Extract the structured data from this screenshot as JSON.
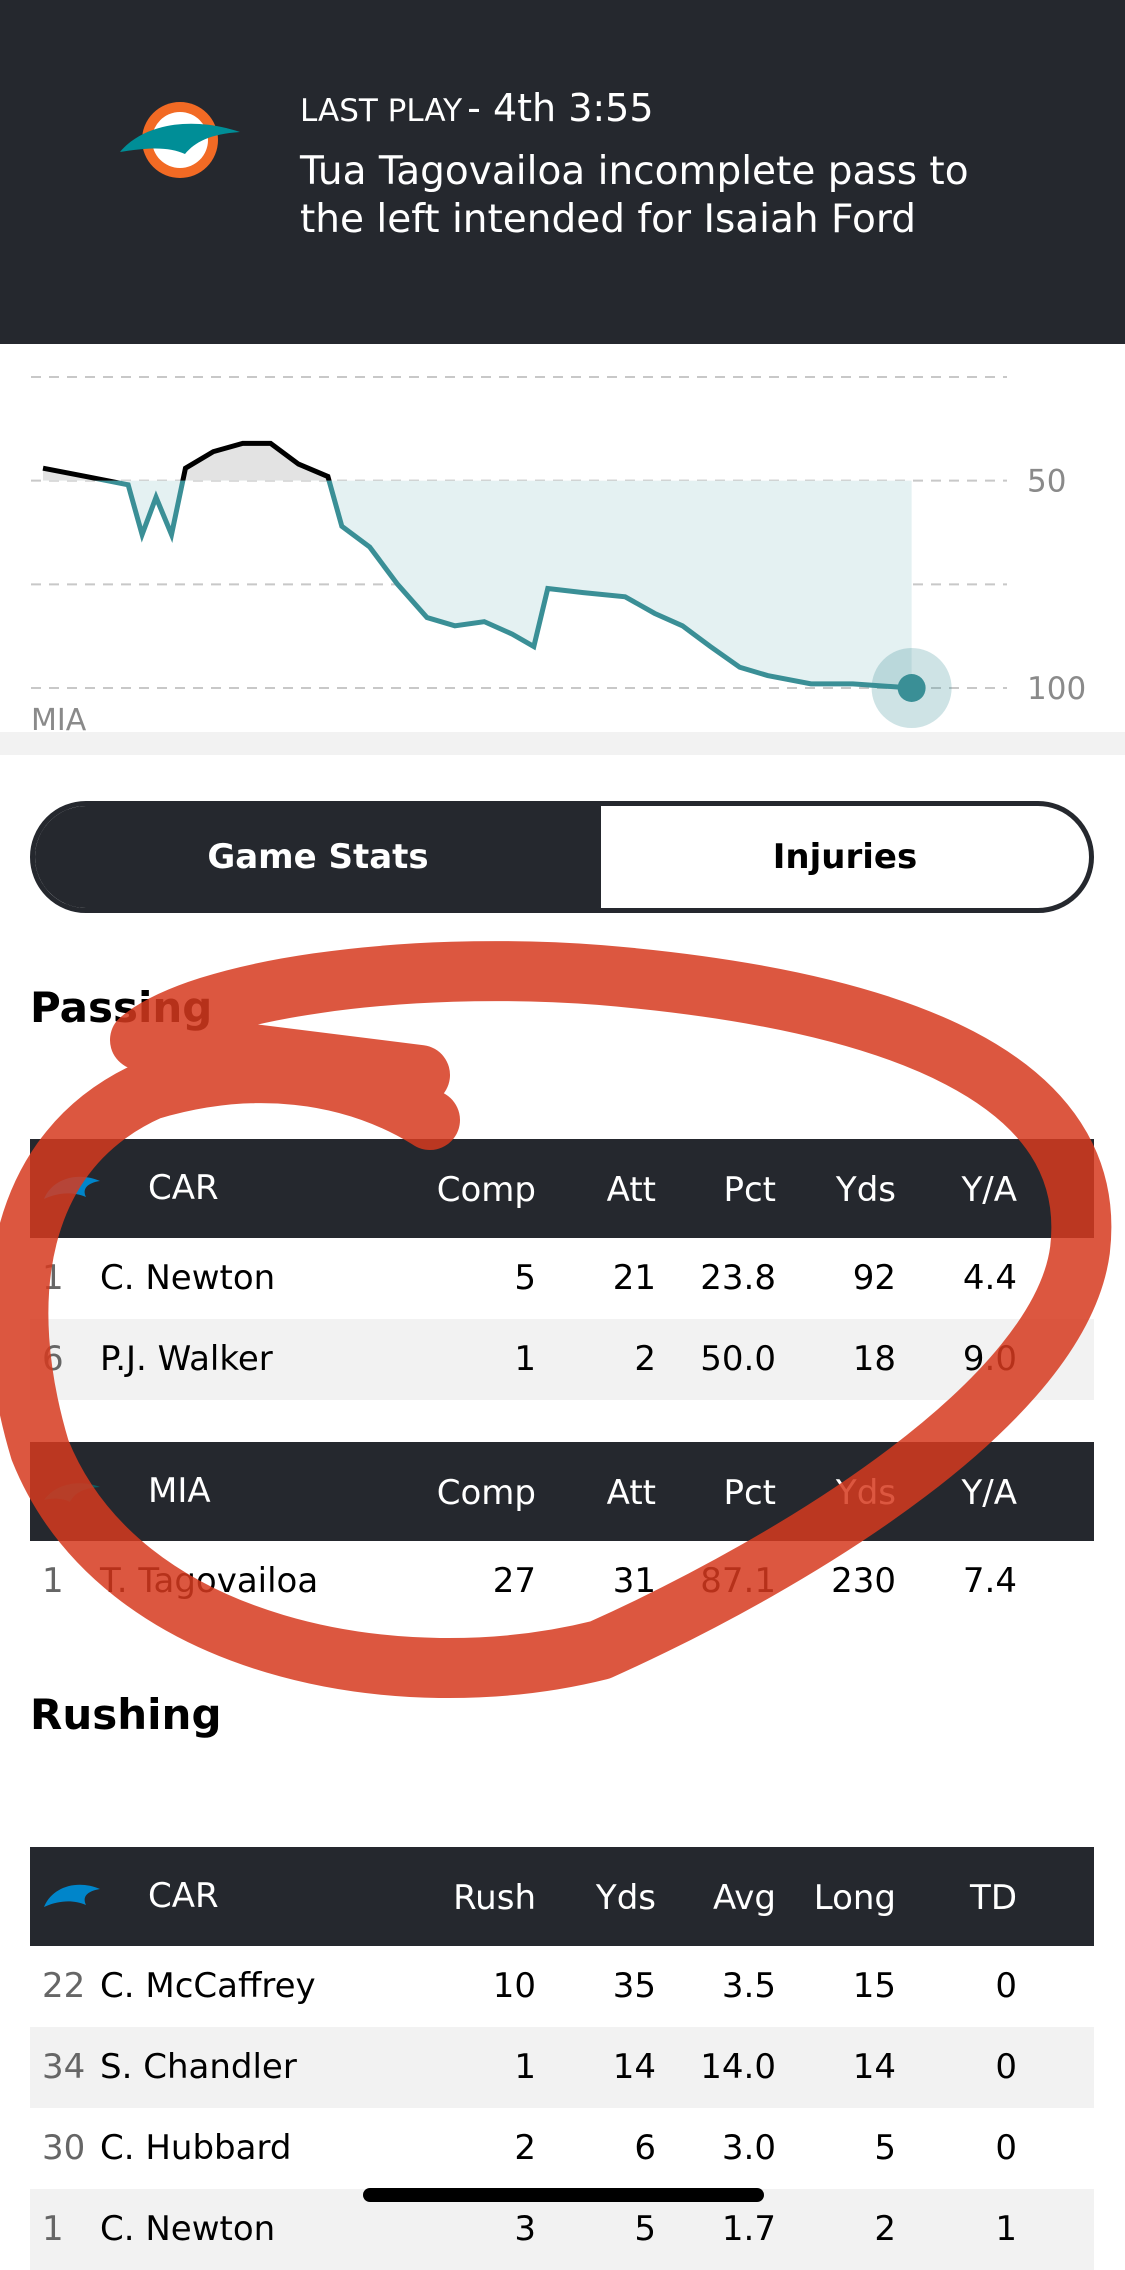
{
  "header": {
    "last_play_label": "LAST PLAY",
    "time": "- 4th 3:55",
    "description": "Tua Tagovailoa incomplete pass to the left intended for Isaiah Ford"
  },
  "chart_data": {
    "type": "line",
    "x": [
      0,
      2.8,
      5.5,
      6.4,
      7.3,
      8.3,
      9.2,
      11,
      12.9,
      14.7,
      16.5,
      18.4,
      19.3,
      21.1,
      22.9,
      24.8,
      26.6,
      28.5,
      30.3,
      31.7,
      32.6,
      34.9,
      37.6,
      39.5,
      41.3,
      43.1,
      45,
      46.8,
      49.6,
      52.3,
      56.1
    ],
    "series": [
      {
        "name": "MIA",
        "color": "#3a8f96",
        "values": [
          47,
          49,
          51,
          63,
          54,
          63,
          47,
          43,
          41,
          41,
          46,
          49,
          61,
          66,
          75,
          83,
          85,
          84,
          87,
          90,
          76,
          77,
          78,
          82,
          85,
          90,
          95,
          97,
          99,
          99,
          100
        ]
      }
    ],
    "xlim": [
      0,
      60
    ],
    "ylim": [
      25,
      100
    ],
    "yticks": [
      50,
      100
    ],
    "minor_yticks": [
      25,
      75
    ],
    "inverted": true,
    "fill_baseline": 50
  },
  "tabs": [
    "Game Stats",
    "Injuries"
  ],
  "sections": [
    {
      "title": "Passing",
      "tables": [
        {
          "team": "CAR",
          "columns": [
            "Comp",
            "Att",
            "Pct",
            "Yds",
            "Y/A"
          ],
          "rows": [
            [
              "1",
              "C. Newton",
              "5",
              "21",
              "23.8",
              "92",
              "4.4"
            ],
            [
              "6",
              "P.J. Walker",
              "1",
              "2",
              "50.0",
              "18",
              "9.0"
            ]
          ]
        },
        {
          "team": "MIA",
          "columns": [
            "Comp",
            "Att",
            "Pct",
            "Yds",
            "Y/A"
          ],
          "rows": [
            [
              "1",
              "T. Tagovailoa",
              "27",
              "31",
              "87.1",
              "230",
              "7.4"
            ]
          ]
        }
      ]
    },
    {
      "title": "Rushing",
      "tables": [
        {
          "team": "CAR",
          "columns": [
            "Rush",
            "Yds",
            "Avg",
            "Long",
            "TD"
          ],
          "rows": [
            [
              "22",
              "C. McCaffrey",
              "10",
              "35",
              "3.5",
              "15",
              "0"
            ],
            [
              "34",
              "S. Chandler",
              "1",
              "14",
              "14.0",
              "14",
              "0"
            ],
            [
              "30",
              "C. Hubbard",
              "2",
              "6",
              "3.0",
              "5",
              "0"
            ],
            [
              "1",
              "C. Newton",
              "3",
              "5",
              "1.7",
              "2",
              "1"
            ]
          ]
        }
      ]
    }
  ]
}
